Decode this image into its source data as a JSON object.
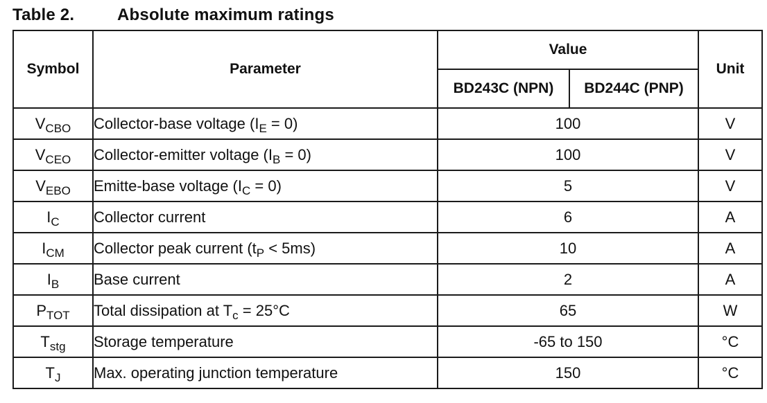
{
  "caption": {
    "number": "Table 2.",
    "title": "Absolute maximum ratings"
  },
  "headers": {
    "symbol": "Symbol",
    "parameter": "Parameter",
    "value": "Value",
    "npn": "BD243C (NPN)",
    "pnp": "BD244C (PNP)",
    "unit": "Unit"
  },
  "rows": [
    {
      "sym": "V",
      "sym_sub": "CBO",
      "p1": "Collector-base voltage (I",
      "p_sub": "E",
      "p2": " = 0)",
      "value": "100",
      "unit": "V"
    },
    {
      "sym": "V",
      "sym_sub": "CEO",
      "p1": "Collector-emitter voltage (I",
      "p_sub": "B",
      "p2": " = 0)",
      "value": "100",
      "unit": "V"
    },
    {
      "sym": "V",
      "sym_sub": "EBO",
      "p1": "Emitte-base voltage (I",
      "p_sub": "C",
      "p2": " = 0)",
      "value": "5",
      "unit": "V"
    },
    {
      "sym": "I",
      "sym_sub": "C",
      "p1": "Collector current",
      "p_sub": "",
      "p2": "",
      "value": "6",
      "unit": "A"
    },
    {
      "sym": "I",
      "sym_sub": "CM",
      "p1": "Collector peak current (t",
      "p_sub": "P",
      "p2": " < 5ms)",
      "value": "10",
      "unit": "A"
    },
    {
      "sym": "I",
      "sym_sub": "B",
      "p1": "Base current",
      "p_sub": "",
      "p2": "",
      "value": "2",
      "unit": "A"
    },
    {
      "sym": "P",
      "sym_sub": "TOT",
      "p1": "Total dissipation at T",
      "p_sub": "c",
      "p2": " = 25°C",
      "value": "65",
      "unit": "W"
    },
    {
      "sym": "T",
      "sym_sub": "stg",
      "p1": "Storage temperature",
      "p_sub": "",
      "p2": "",
      "value": "-65 to 150",
      "unit": "°C"
    },
    {
      "sym": "T",
      "sym_sub": "J",
      "p1": "Max. operating junction temperature",
      "p_sub": "",
      "p2": "",
      "value": "150",
      "unit": "°C"
    }
  ]
}
